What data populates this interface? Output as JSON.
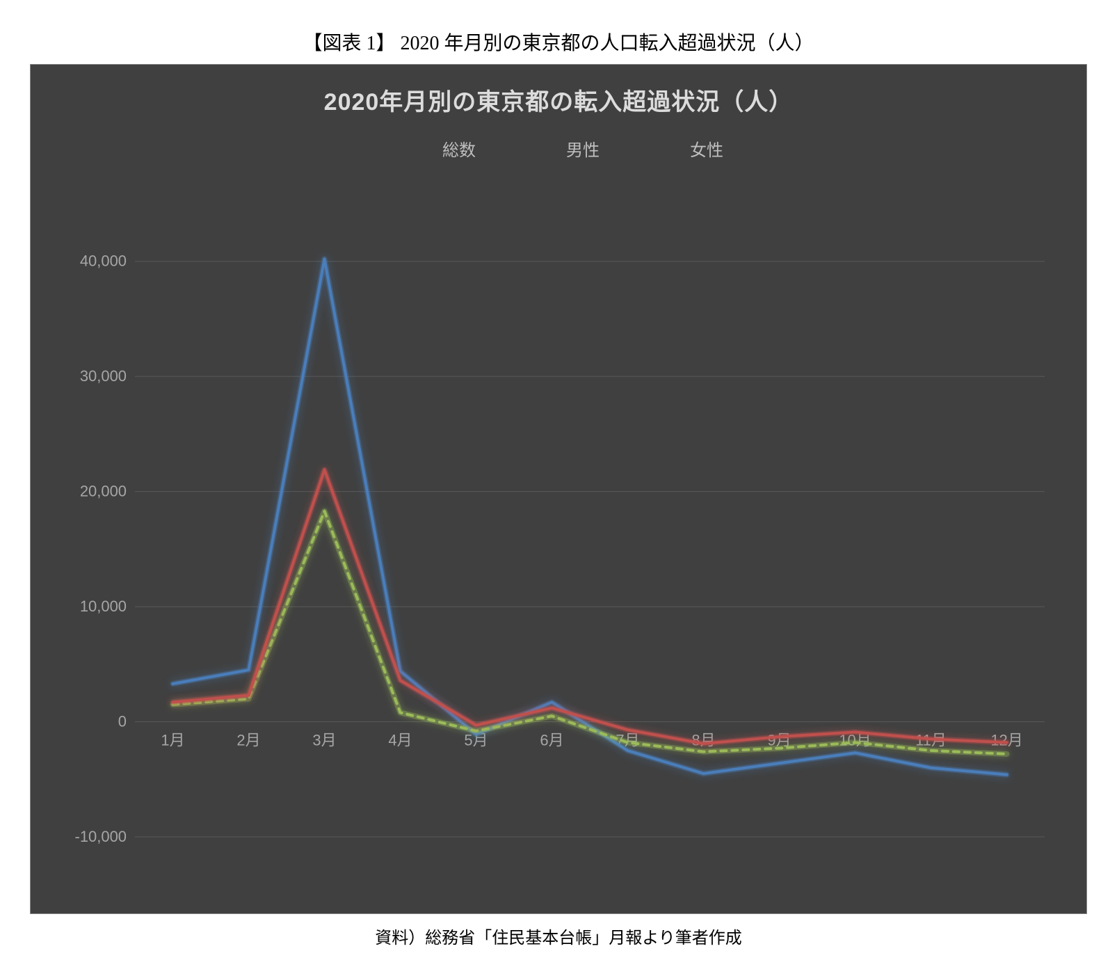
{
  "caption_top": "【図表 1】 2020 年月別の東京都の人口転入超過状況（人）",
  "caption_bottom": "資料）総務省「住民基本台帳」月報より筆者作成",
  "chart": {
    "type": "line",
    "title": "2020年月別の東京都の転入超過状況（人）",
    "title_fontsize": 34,
    "title_color": "#dcdcdc",
    "background_color": "#404040",
    "grid_color": "#595959",
    "axis_label_color": "#a6a6a6",
    "axis_fontsize": 22,
    "categories": [
      "1月",
      "2月",
      "3月",
      "4月",
      "5月",
      "6月",
      "7月",
      "8月",
      "9月",
      "10月",
      "11月",
      "12月"
    ],
    "ylim": [
      -10000,
      45000
    ],
    "yticks": [
      -10000,
      0,
      10000,
      20000,
      30000,
      40000
    ],
    "ytick_labels": [
      "-10,000",
      "0",
      "10,000",
      "20,000",
      "30,000",
      "40,000"
    ],
    "series": [
      {
        "name": "総数",
        "label": "総数",
        "color": "#4a7ebb",
        "glow_color": "#4a7ebb",
        "line_width": 4,
        "dash": "none",
        "values": [
          3300,
          4500,
          40200,
          4400,
          -1100,
          1700,
          -2500,
          -4500,
          -3600,
          -2700,
          -4000,
          -4600
        ]
      },
      {
        "name": "男性",
        "label": "男性",
        "color": "#9bbb59",
        "glow_color": "#9bbb59",
        "line_width": 4,
        "dash": "8 8",
        "values": [
          1500,
          2000,
          18300,
          800,
          -800,
          500,
          -1800,
          -2600,
          -2300,
          -1800,
          -2500,
          -2800
        ]
      },
      {
        "name": "女性",
        "label": "女性",
        "color": "#c0504d",
        "glow_color": "#c0504d",
        "line_width": 4,
        "dash": "none",
        "values": [
          1700,
          2300,
          21900,
          3600,
          -300,
          1200,
          -700,
          -1900,
          -1300,
          -900,
          -1500,
          -1800
        ]
      }
    ],
    "legend": {
      "position": "top-center",
      "fontsize": 24,
      "text_color": "#bfbfbf"
    }
  }
}
